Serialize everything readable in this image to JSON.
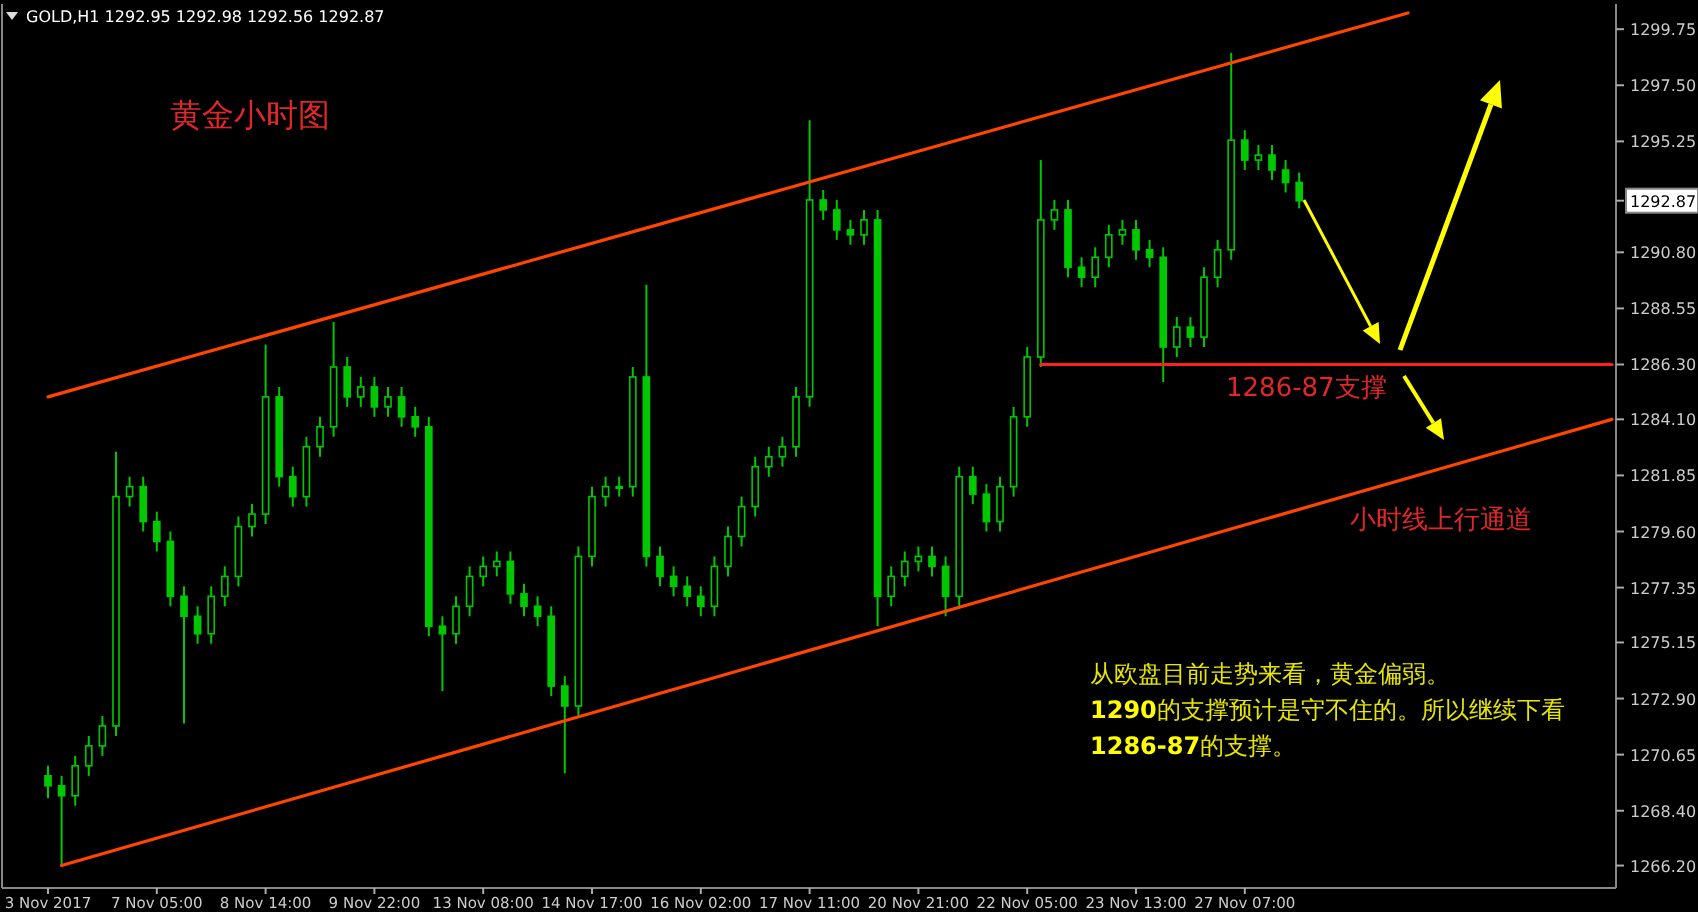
{
  "chart_data": {
    "type": "candlestick",
    "title": "GOLD,H1  1292.95 1292.98 1292.56 1292.87",
    "color": "#00c800",
    "categories": [
      "3 Nov 2017",
      null,
      null,
      null,
      null,
      null,
      null,
      null,
      "7 Nov 05:00",
      null,
      null,
      null,
      null,
      null,
      null,
      null,
      "8 Nov 14:00",
      null,
      null,
      null,
      null,
      null,
      null,
      null,
      "9 Nov 22:00",
      null,
      null,
      null,
      null,
      null,
      null,
      null,
      "13 Nov 08:00",
      null,
      null,
      null,
      null,
      null,
      null,
      null,
      "14 Nov 17:00",
      null,
      null,
      null,
      null,
      null,
      null,
      null,
      "16 Nov 02:00",
      null,
      null,
      null,
      null,
      null,
      null,
      null,
      "17 Nov 11:00",
      null,
      null,
      null,
      null,
      null,
      null,
      null,
      "20 Nov 21:00",
      null,
      null,
      null,
      null,
      null,
      null,
      null,
      "22 Nov 05:00",
      null,
      null,
      null,
      null,
      null,
      null,
      null,
      "23 Nov 13:00",
      null,
      null,
      null,
      null,
      null,
      null,
      null,
      "27 Nov 07:00",
      null,
      null,
      null,
      null,
      null,
      null,
      null,
      null,
      null,
      null,
      null,
      null,
      null,
      null,
      null,
      null,
      null,
      null,
      null,
      null,
      null,
      null,
      null,
      null,
      null,
      null,
      null
    ],
    "ohlc": [
      [
        1269.8,
        1270.2,
        1268.9,
        1269.4
      ],
      [
        1269.4,
        1269.8,
        1266.2,
        1269.0
      ],
      [
        1269.0,
        1270.6,
        1268.6,
        1270.2
      ],
      [
        1270.2,
        1271.4,
        1269.8,
        1271.0
      ],
      [
        1271.0,
        1272.2,
        1270.6,
        1271.8
      ],
      [
        1271.8,
        1282.8,
        1271.4,
        1281.0
      ],
      [
        1281.0,
        1281.8,
        1280.6,
        1281.4
      ],
      [
        1281.4,
        1281.8,
        1279.6,
        1280.0
      ],
      [
        1280.0,
        1280.4,
        1278.8,
        1279.2
      ],
      [
        1279.2,
        1279.6,
        1276.6,
        1277.0
      ],
      [
        1277.0,
        1277.4,
        1271.9,
        1276.2
      ],
      [
        1276.2,
        1276.6,
        1275.1,
        1275.5
      ],
      [
        1275.5,
        1277.4,
        1275.1,
        1277.0
      ],
      [
        1277.0,
        1278.2,
        1276.6,
        1277.8
      ],
      [
        1277.8,
        1280.2,
        1277.4,
        1279.8
      ],
      [
        1279.8,
        1280.7,
        1279.4,
        1280.3
      ],
      [
        1280.3,
        1287.1,
        1279.9,
        1285.0
      ],
      [
        1285.0,
        1285.4,
        1281.4,
        1281.8
      ],
      [
        1281.8,
        1282.2,
        1280.6,
        1281.0
      ],
      [
        1281.0,
        1283.4,
        1280.6,
        1283.0
      ],
      [
        1283.0,
        1284.2,
        1282.6,
        1283.8
      ],
      [
        1283.8,
        1288.0,
        1283.4,
        1286.2
      ],
      [
        1286.2,
        1286.6,
        1284.6,
        1285.0
      ],
      [
        1285.0,
        1285.8,
        1284.6,
        1285.4
      ],
      [
        1285.4,
        1285.8,
        1284.2,
        1284.6
      ],
      [
        1284.6,
        1285.4,
        1284.2,
        1285.0
      ],
      [
        1285.0,
        1285.4,
        1283.8,
        1284.2
      ],
      [
        1284.2,
        1284.6,
        1283.4,
        1283.8
      ],
      [
        1283.8,
        1284.2,
        1275.4,
        1275.8
      ],
      [
        1275.8,
        1276.2,
        1273.2,
        1275.5
      ],
      [
        1275.5,
        1277.0,
        1275.1,
        1276.6
      ],
      [
        1276.6,
        1278.2,
        1276.2,
        1277.8
      ],
      [
        1277.8,
        1278.6,
        1277.4,
        1278.2
      ],
      [
        1278.2,
        1278.8,
        1277.8,
        1278.4
      ],
      [
        1278.4,
        1278.8,
        1276.7,
        1277.1
      ],
      [
        1277.1,
        1277.5,
        1276.2,
        1276.6
      ],
      [
        1276.6,
        1277.0,
        1275.8,
        1276.2
      ],
      [
        1276.2,
        1276.6,
        1273.0,
        1273.4
      ],
      [
        1273.4,
        1273.8,
        1269.9,
        1272.6
      ],
      [
        1272.6,
        1279.0,
        1272.2,
        1278.6
      ],
      [
        1278.6,
        1281.4,
        1278.2,
        1281.0
      ],
      [
        1281.0,
        1281.8,
        1280.6,
        1281.4
      ],
      [
        1281.4,
        1281.8,
        1281.0,
        1281.4
      ],
      [
        1281.4,
        1286.2,
        1281.0,
        1285.8
      ],
      [
        1285.8,
        1289.5,
        1278.2,
        1278.6
      ],
      [
        1278.6,
        1279.0,
        1277.4,
        1277.8
      ],
      [
        1277.8,
        1278.2,
        1277.0,
        1277.4
      ],
      [
        1277.4,
        1277.8,
        1276.6,
        1277.0
      ],
      [
        1277.0,
        1277.4,
        1276.2,
        1276.6
      ],
      [
        1276.6,
        1278.6,
        1276.2,
        1278.2
      ],
      [
        1278.2,
        1279.8,
        1277.8,
        1279.4
      ],
      [
        1279.4,
        1281.0,
        1279.0,
        1280.6
      ],
      [
        1280.6,
        1282.6,
        1280.2,
        1282.2
      ],
      [
        1282.2,
        1283.0,
        1281.8,
        1282.6
      ],
      [
        1282.6,
        1283.4,
        1282.2,
        1283.0
      ],
      [
        1283.0,
        1285.4,
        1282.6,
        1285.0
      ],
      [
        1285.0,
        1296.1,
        1284.6,
        1292.9
      ],
      [
        1292.9,
        1293.3,
        1292.1,
        1292.5
      ],
      [
        1292.5,
        1292.9,
        1291.3,
        1291.7
      ],
      [
        1291.7,
        1292.1,
        1291.1,
        1291.5
      ],
      [
        1291.5,
        1292.5,
        1291.1,
        1292.1
      ],
      [
        1292.1,
        1292.5,
        1275.8,
        1277.0
      ],
      [
        1277.0,
        1278.2,
        1276.6,
        1277.8
      ],
      [
        1277.8,
        1278.8,
        1277.4,
        1278.4
      ],
      [
        1278.4,
        1279.0,
        1278.0,
        1278.6
      ],
      [
        1278.6,
        1279.0,
        1277.8,
        1278.2
      ],
      [
        1278.2,
        1278.6,
        1276.2,
        1277.0
      ],
      [
        1277.0,
        1282.2,
        1276.6,
        1281.8
      ],
      [
        1281.8,
        1282.2,
        1280.7,
        1281.1
      ],
      [
        1281.1,
        1281.5,
        1279.6,
        1280.0
      ],
      [
        1280.0,
        1281.8,
        1279.6,
        1281.4
      ],
      [
        1281.4,
        1284.6,
        1281.0,
        1284.2
      ],
      [
        1284.2,
        1287.0,
        1283.8,
        1286.6
      ],
      [
        1286.6,
        1294.5,
        1286.2,
        1292.1
      ],
      [
        1292.1,
        1292.9,
        1291.7,
        1292.5
      ],
      [
        1292.5,
        1292.9,
        1289.8,
        1290.2
      ],
      [
        1290.2,
        1290.6,
        1289.4,
        1289.8
      ],
      [
        1289.8,
        1291.0,
        1289.4,
        1290.6
      ],
      [
        1290.6,
        1291.9,
        1290.2,
        1291.5
      ],
      [
        1291.5,
        1292.1,
        1291.1,
        1291.7
      ],
      [
        1291.7,
        1292.1,
        1290.5,
        1290.9
      ],
      [
        1290.9,
        1291.3,
        1290.2,
        1290.6
      ],
      [
        1290.6,
        1291.0,
        1285.6,
        1287.0
      ],
      [
        1287.0,
        1288.2,
        1286.6,
        1287.8
      ],
      [
        1287.8,
        1288.2,
        1287.0,
        1287.4
      ],
      [
        1287.4,
        1290.2,
        1287.0,
        1289.8
      ],
      [
        1289.8,
        1291.3,
        1289.4,
        1290.9
      ],
      [
        1290.9,
        1298.8,
        1290.5,
        1295.3
      ],
      [
        1295.3,
        1295.7,
        1294.1,
        1294.5
      ],
      [
        1294.5,
        1295.1,
        1294.1,
        1294.7
      ],
      [
        1294.7,
        1295.1,
        1293.7,
        1294.1
      ],
      [
        1294.1,
        1294.5,
        1293.2,
        1293.6
      ],
      [
        1293.6,
        1294.0,
        1292.56,
        1292.87
      ],
      null,
      null,
      null,
      null,
      null,
      null,
      null,
      null,
      null,
      null,
      null,
      null,
      null,
      null,
      null,
      null,
      null,
      null,
      null,
      null,
      null,
      null,
      null
    ],
    "series": [
      {
        "type": "line",
        "color": "#ff4500",
        "values": [
          1285.0,
          null,
          null,
          null,
          null,
          null,
          null,
          null,
          null,
          null,
          null,
          null,
          null,
          null,
          null,
          null,
          null,
          null,
          null,
          null,
          null,
          null,
          null,
          null,
          null,
          null,
          null,
          null,
          null,
          null,
          null,
          null,
          null,
          null,
          null,
          null,
          null,
          null,
          null,
          null,
          null,
          null,
          null,
          null,
          null,
          null,
          null,
          null,
          null,
          null,
          null,
          null,
          null,
          null,
          null,
          null,
          null,
          null,
          null,
          null,
          null,
          null,
          null,
          null,
          null,
          null,
          null,
          null,
          null,
          null,
          null,
          null,
          null,
          null,
          null,
          null,
          null,
          null,
          null,
          null,
          null,
          null,
          null,
          null,
          null,
          null,
          null,
          null,
          null,
          null,
          null,
          null,
          null,
          null,
          null,
          null,
          null,
          null,
          null,
          null,
          1300.4,
          null,
          null,
          null,
          null,
          null,
          null,
          null,
          null,
          null,
          null,
          null,
          null,
          null,
          null,
          null
        ]
      },
      {
        "type": "line",
        "color": "#ff4500",
        "values": [
          null,
          1266.2,
          null,
          null,
          null,
          null,
          null,
          null,
          null,
          null,
          null,
          null,
          null,
          null,
          null,
          null,
          null,
          null,
          null,
          null,
          null,
          null,
          null,
          null,
          null,
          null,
          null,
          null,
          null,
          null,
          null,
          null,
          null,
          null,
          null,
          null,
          null,
          null,
          null,
          null,
          null,
          null,
          null,
          null,
          null,
          null,
          null,
          null,
          null,
          null,
          null,
          null,
          null,
          null,
          null,
          null,
          null,
          null,
          null,
          null,
          null,
          null,
          null,
          null,
          null,
          null,
          null,
          null,
          null,
          null,
          null,
          null,
          null,
          null,
          null,
          null,
          null,
          null,
          null,
          null,
          null,
          null,
          null,
          null,
          null,
          null,
          null,
          null,
          null,
          null,
          null,
          null,
          null,
          null,
          null,
          null,
          null,
          null,
          null,
          null,
          null,
          null,
          null,
          null,
          null,
          null,
          null,
          null,
          null,
          null,
          null,
          null,
          null,
          null,
          null,
          1284.1
        ]
      },
      {
        "type": "line",
        "color": "#ff2020",
        "values": [
          null,
          null,
          null,
          null,
          null,
          null,
          null,
          null,
          null,
          null,
          null,
          null,
          null,
          null,
          null,
          null,
          null,
          null,
          null,
          null,
          null,
          null,
          null,
          null,
          null,
          null,
          null,
          null,
          null,
          null,
          null,
          null,
          null,
          null,
          null,
          null,
          null,
          null,
          null,
          null,
          null,
          null,
          null,
          null,
          null,
          null,
          null,
          null,
          null,
          null,
          null,
          null,
          null,
          null,
          null,
          null,
          null,
          null,
          null,
          null,
          null,
          null,
          null,
          null,
          null,
          null,
          null,
          null,
          null,
          null,
          null,
          null,
          null,
          1286.3,
          null,
          null,
          null,
          null,
          null,
          null,
          null,
          null,
          null,
          null,
          null,
          null,
          null,
          null,
          null,
          null,
          null,
          null,
          null,
          null,
          null,
          null,
          null,
          null,
          null,
          null,
          null,
          null,
          null,
          null,
          null,
          null,
          null,
          null,
          null,
          null,
          null,
          null,
          null,
          null,
          null,
          1286.3
        ]
      }
    ],
    "ylim": [
      1265.3,
      1300.6
    ],
    "yticks": [
      1299.75,
      {
        "value": 1297.5,
        "label": "1297.50"
      },
      1295.25,
      1292.87,
      {
        "value": 1290.8,
        "label": "1290.80"
      },
      1288.55,
      {
        "value": 1286.3,
        "label": "1286.30"
      },
      {
        "value": 1284.1,
        "label": "1284.10"
      },
      1281.85,
      {
        "value": 1279.6,
        "label": "1279.60"
      },
      1277.35,
      1275.15,
      {
        "value": 1272.9,
        "label": "1272.90"
      },
      1270.65,
      {
        "value": 1268.4,
        "label": "1268.40"
      },
      {
        "value": 1266.2,
        "label": "1266.20"
      }
    ],
    "annotations": [
      "黄金小时图",
      "1286-87支撑",
      "小时线上行通道",
      "从欧盘目前走势来看，黄金偏弱。",
      "**1290**的支撑预计是守不住的。所以继续下看",
      "**1286-87**的支撑。"
    ]
  }
}
